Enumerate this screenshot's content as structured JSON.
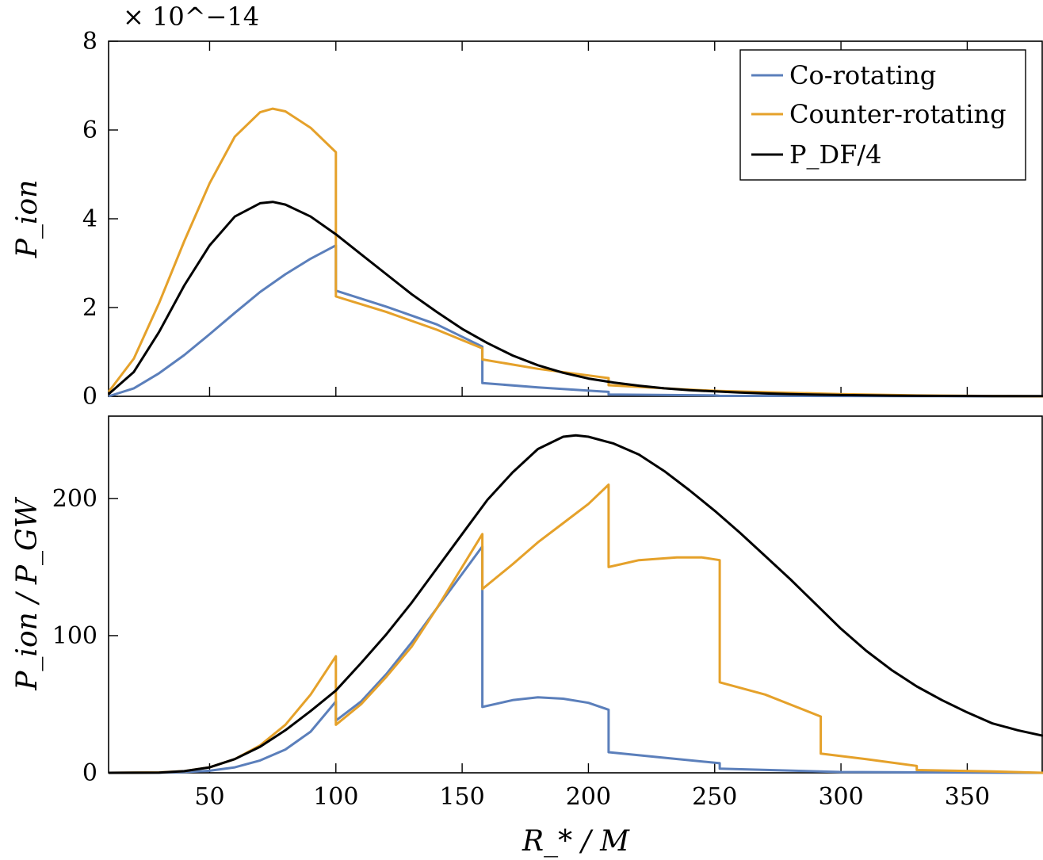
{
  "chart_data": [
    {
      "type": "line",
      "id": "top",
      "ylabel": "P_ion",
      "y_exponent_label": "× 10^−14",
      "xlim": [
        10,
        380
      ],
      "ylim": [
        0,
        8
      ],
      "x_ticks": [
        50,
        100,
        150,
        200,
        250,
        300,
        350
      ],
      "y_ticks": [
        0,
        2,
        4,
        6,
        8
      ],
      "y_tick_labels": [
        "0",
        "2",
        "4",
        "6",
        "8"
      ],
      "legend": {
        "placement": "top-right",
        "entries": [
          "Co-rotating",
          "Counter-rotating",
          "P_DF/4"
        ]
      },
      "series": [
        {
          "name": "Co-rotating",
          "color": "#5b7fbb",
          "points": [
            [
              10,
              0
            ],
            [
              20,
              0.18
            ],
            [
              30,
              0.52
            ],
            [
              40,
              0.93
            ],
            [
              50,
              1.4
            ],
            [
              60,
              1.88
            ],
            [
              70,
              2.35
            ],
            [
              80,
              2.75
            ],
            [
              90,
              3.1
            ],
            [
              100,
              3.4
            ],
            [
              100,
              2.38
            ],
            [
              120,
              2.02
            ],
            [
              140,
              1.62
            ],
            [
              158,
              1.12
            ],
            [
              158,
              0.3
            ],
            [
              180,
              0.2
            ],
            [
              208,
              0.1
            ],
            [
              208,
              0.04
            ],
            [
              250,
              0.02
            ],
            [
              252,
              0.01
            ],
            [
              380,
              0.0
            ]
          ]
        },
        {
          "name": "Counter-rotating",
          "color": "#e5a12a",
          "points": [
            [
              10,
              0.1
            ],
            [
              20,
              0.85
            ],
            [
              30,
              2.1
            ],
            [
              40,
              3.5
            ],
            [
              50,
              4.8
            ],
            [
              60,
              5.85
            ],
            [
              70,
              6.4
            ],
            [
              75,
              6.48
            ],
            [
              80,
              6.42
            ],
            [
              90,
              6.05
            ],
            [
              100,
              5.5
            ],
            [
              100,
              2.25
            ],
            [
              120,
              1.9
            ],
            [
              140,
              1.5
            ],
            [
              158,
              1.08
            ],
            [
              158,
              0.83
            ],
            [
              180,
              0.62
            ],
            [
              208,
              0.41
            ],
            [
              208,
              0.25
            ],
            [
              240,
              0.15
            ],
            [
              252,
              0.12
            ],
            [
              300,
              0.05
            ],
            [
              330,
              0.02
            ],
            [
              380,
              0.0
            ]
          ]
        },
        {
          "name": "P_DF/4",
          "color": "#000000",
          "points": [
            [
              10,
              0.05
            ],
            [
              20,
              0.55
            ],
            [
              30,
              1.45
            ],
            [
              40,
              2.5
            ],
            [
              50,
              3.4
            ],
            [
              60,
              4.05
            ],
            [
              70,
              4.35
            ],
            [
              75,
              4.38
            ],
            [
              80,
              4.32
            ],
            [
              90,
              4.05
            ],
            [
              100,
              3.65
            ],
            [
              110,
              3.2
            ],
            [
              120,
              2.75
            ],
            [
              130,
              2.3
            ],
            [
              140,
              1.9
            ],
            [
              150,
              1.52
            ],
            [
              160,
              1.2
            ],
            [
              170,
              0.92
            ],
            [
              180,
              0.7
            ],
            [
              190,
              0.53
            ],
            [
              200,
              0.4
            ],
            [
              210,
              0.31
            ],
            [
              220,
              0.24
            ],
            [
              230,
              0.18
            ],
            [
              240,
              0.14
            ],
            [
              250,
              0.11
            ],
            [
              260,
              0.085
            ],
            [
              270,
              0.065
            ],
            [
              280,
              0.05
            ],
            [
              290,
              0.038
            ],
            [
              300,
              0.028
            ],
            [
              320,
              0.016
            ],
            [
              340,
              0.009
            ],
            [
              360,
              0.005
            ],
            [
              380,
              0.003
            ]
          ]
        }
      ]
    },
    {
      "type": "line",
      "id": "bottom",
      "ylabel": "P_ion / P_GW",
      "xlabel": "R_* / M",
      "xlim": [
        10,
        380
      ],
      "ylim": [
        0,
        260
      ],
      "x_ticks": [
        50,
        100,
        150,
        200,
        250,
        300,
        350
      ],
      "x_tick_labels": [
        "50",
        "100",
        "150",
        "200",
        "250",
        "300",
        "350"
      ],
      "y_ticks": [
        0,
        100,
        200
      ],
      "y_tick_labels": [
        "0",
        "100",
        "200"
      ],
      "series": [
        {
          "name": "Co-rotating",
          "color": "#5b7fbb",
          "points": [
            [
              10,
              0
            ],
            [
              30,
              0.1
            ],
            [
              40,
              0.5
            ],
            [
              50,
              1.5
            ],
            [
              60,
              4
            ],
            [
              70,
              9
            ],
            [
              80,
              17
            ],
            [
              90,
              30
            ],
            [
              100,
              52
            ],
            [
              100,
              38
            ],
            [
              110,
              52
            ],
            [
              120,
              72
            ],
            [
              130,
              95
            ],
            [
              140,
              120
            ],
            [
              150,
              145
            ],
            [
              158,
              165
            ],
            [
              158,
              48
            ],
            [
              170,
              53
            ],
            [
              180,
              55
            ],
            [
              190,
              54
            ],
            [
              200,
              51
            ],
            [
              208,
              46
            ],
            [
              208,
              15
            ],
            [
              230,
              11
            ],
            [
              252,
              7
            ],
            [
              252,
              3
            ],
            [
              300,
              0.6
            ],
            [
              380,
              0
            ]
          ]
        },
        {
          "name": "Counter-rotating",
          "color": "#e5a12a",
          "points": [
            [
              10,
              0
            ],
            [
              30,
              0.3
            ],
            [
              40,
              1.2
            ],
            [
              50,
              4
            ],
            [
              60,
              10
            ],
            [
              70,
              20
            ],
            [
              80,
              35
            ],
            [
              90,
              57
            ],
            [
              100,
              85
            ],
            [
              100,
              35
            ],
            [
              110,
              50
            ],
            [
              120,
              70
            ],
            [
              130,
              92
            ],
            [
              140,
              120
            ],
            [
              150,
              150
            ],
            [
              158,
              174
            ],
            [
              158,
              134
            ],
            [
              170,
              152
            ],
            [
              180,
              168
            ],
            [
              190,
              182
            ],
            [
              200,
              196
            ],
            [
              208,
              210
            ],
            [
              208,
              150
            ],
            [
              220,
              155
            ],
            [
              235,
              157
            ],
            [
              245,
              157
            ],
            [
              252,
              155
            ],
            [
              252,
              66
            ],
            [
              270,
              57
            ],
            [
              292,
              41
            ],
            [
              292,
              14
            ],
            [
              310,
              10
            ],
            [
              330,
              5
            ],
            [
              330,
              2
            ],
            [
              360,
              1
            ],
            [
              380,
              0
            ]
          ]
        },
        {
          "name": "P_DF/4",
          "color": "#000000",
          "points": [
            [
              10,
              0
            ],
            [
              30,
              0.2
            ],
            [
              40,
              1.2
            ],
            [
              50,
              4
            ],
            [
              60,
              10
            ],
            [
              70,
              19
            ],
            [
              80,
              31
            ],
            [
              90,
              45
            ],
            [
              100,
              60
            ],
            [
              110,
              80
            ],
            [
              120,
              101
            ],
            [
              130,
              124
            ],
            [
              140,
              149
            ],
            [
              150,
              174
            ],
            [
              160,
              199
            ],
            [
              170,
              219
            ],
            [
              180,
              236
            ],
            [
              190,
              245
            ],
            [
              195,
              246
            ],
            [
              200,
              245
            ],
            [
              210,
              240
            ],
            [
              220,
              232
            ],
            [
              230,
              220
            ],
            [
              240,
              206
            ],
            [
              250,
              191
            ],
            [
              260,
              175
            ],
            [
              270,
              158
            ],
            [
              280,
              141
            ],
            [
              290,
              123
            ],
            [
              300,
              105
            ],
            [
              310,
              89
            ],
            [
              320,
              75
            ],
            [
              330,
              63
            ],
            [
              340,
              53
            ],
            [
              350,
              44
            ],
            [
              360,
              36
            ],
            [
              370,
              31
            ],
            [
              380,
              27
            ]
          ]
        }
      ]
    }
  ]
}
